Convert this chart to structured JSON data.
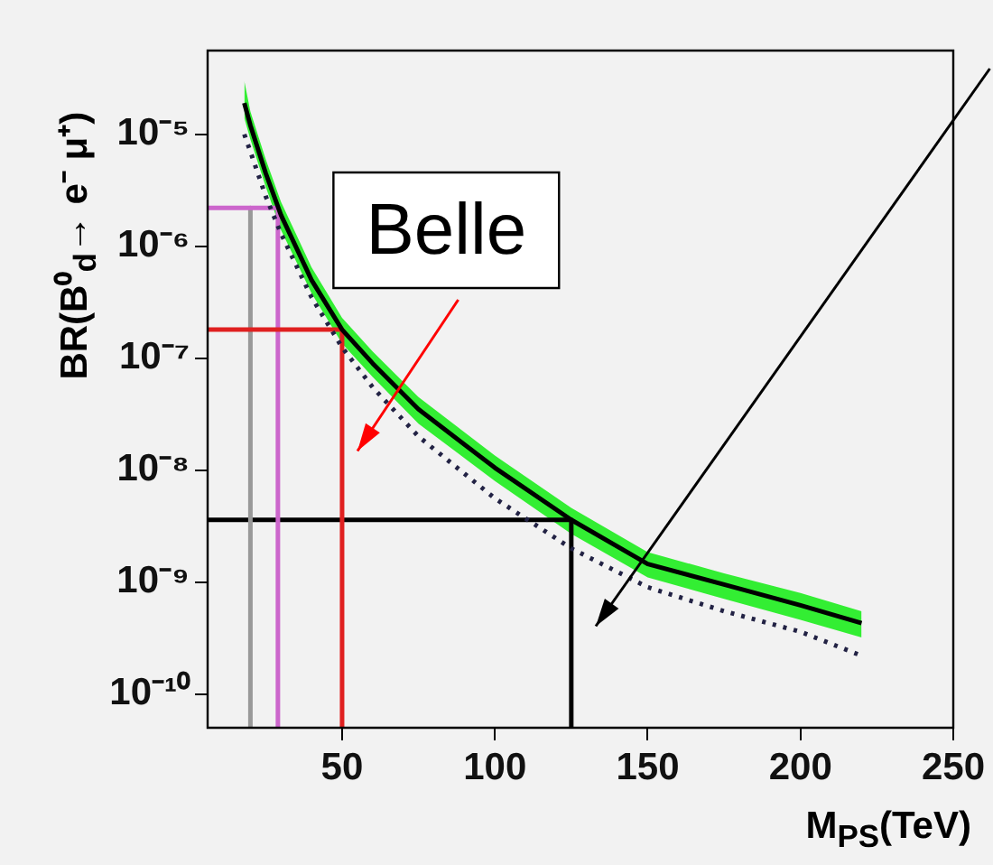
{
  "chart_data": {
    "type": "line",
    "xlabel": "M$_{PS}$(TeV)",
    "ylabel": "BR(B⁰$_{d}$→ e⁻ μ⁺)",
    "xlim": [
      6,
      250
    ],
    "xticks": [
      50,
      100,
      150,
      200,
      250
    ],
    "ylim": [
      5e-11,
      5.6e-05
    ],
    "log": "y",
    "yticks": [
      {
        "value": 1e-10,
        "label": "10⁻¹⁰"
      },
      {
        "value": 1e-09,
        "label": "10⁻⁹"
      },
      {
        "value": 1e-08,
        "label": "10⁻⁸"
      },
      {
        "value": 1e-07,
        "label": "10⁻⁷"
      },
      {
        "value": 1e-06,
        "label": "10⁻⁶"
      },
      {
        "value": 1e-05,
        "label": "10⁻⁵"
      }
    ],
    "grid": false,
    "legend": false,
    "x": [
      18,
      20,
      25,
      30,
      40,
      50,
      60,
      75,
      100,
      125,
      150,
      175,
      200,
      220
    ],
    "series": [
      {
        "color": "#000000",
        "values": [
          1.9e-05,
          1.2e-05,
          4.5e-06,
          1.9e-06,
          5e-07,
          1.8e-07,
          9e-08,
          3.5e-08,
          1.05e-08,
          3.6e-09,
          1.45e-09,
          9.5e-10,
          6.2e-10,
          4.3e-10
        ],
        "upper": [
          3e-05,
          1.6e-05,
          6e-06,
          2.5e-06,
          6.5e-07,
          2.3e-07,
          1.15e-07,
          4.5e-08,
          1.35e-08,
          4.6e-09,
          1.85e-09,
          1.2e-09,
          8e-10,
          5.5e-10
        ],
        "lower": [
          1.4e-05,
          9e-06,
          3.4e-06,
          1.4e-06,
          3.8e-07,
          1.35e-07,
          6.8e-08,
          2.6e-08,
          8e-09,
          2.7e-09,
          1.1e-09,
          7.1e-10,
          4.6e-10,
          3.2e-10
        ]
      },
      {
        "color": "#222244",
        "line_style": "dotted",
        "values": [
          1e-05,
          7e-06,
          2.8e-06,
          1.3e-06,
          3.5e-07,
          1.25e-07,
          5.5e-08,
          2e-08,
          5.6e-09,
          2e-09,
          9e-10,
          5.5e-10,
          3.6e-10,
          2.2e-10
        ]
      },
      {
        "color": "#e02020",
        "x": [
          6,
          50,
          50
        ],
        "values": [
          1.8e-07,
          1.8e-07,
          5e-11
        ]
      },
      {
        "color": "#cc66cc",
        "x": [
          6,
          29,
          29
        ],
        "values": [
          2.2e-06,
          2.2e-06,
          5e-11
        ]
      },
      {
        "color": "#999999",
        "x": [
          20,
          20
        ],
        "values": [
          2.2e-06,
          5e-11
        ]
      },
      {
        "color": "#000000",
        "x": [
          6,
          125,
          125
        ],
        "values": [
          3.6e-09,
          3.6e-09,
          5e-11
        ]
      }
    ],
    "annotations": [
      "Belle"
    ]
  }
}
